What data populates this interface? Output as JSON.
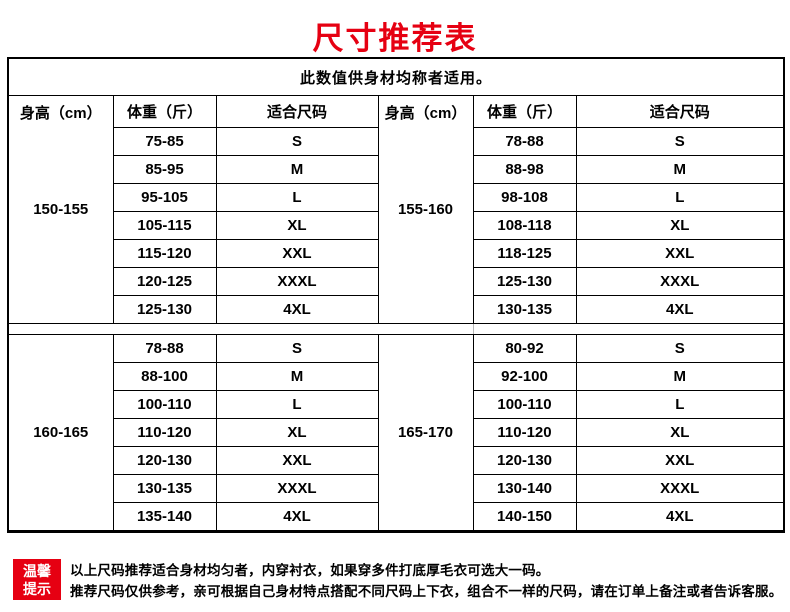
{
  "title": "尺寸推荐表",
  "colors": {
    "accent_red": "#e60012",
    "table_border": "#000000",
    "spacer_divider": "#b5b5b5"
  },
  "table": {
    "note": "此数值供身材均称者适用。",
    "headers": {
      "height": "身高（cm）",
      "weight": "体重（斤）",
      "size": "适合尺码"
    },
    "blocks": [
      {
        "left": {
          "height_range": "150-155",
          "rows": [
            {
              "weight": "75-85",
              "size": "S"
            },
            {
              "weight": "85-95",
              "size": "M"
            },
            {
              "weight": "95-105",
              "size": "L"
            },
            {
              "weight": "105-115",
              "size": "XL"
            },
            {
              "weight": "115-120",
              "size": "XXL"
            },
            {
              "weight": "120-125",
              "size": "XXXL"
            },
            {
              "weight": "125-130",
              "size": "4XL"
            }
          ]
        },
        "right": {
          "height_range": "155-160",
          "rows": [
            {
              "weight": "78-88",
              "size": "S"
            },
            {
              "weight": "88-98",
              "size": "M"
            },
            {
              "weight": "98-108",
              "size": "L"
            },
            {
              "weight": "108-118",
              "size": "XL"
            },
            {
              "weight": "118-125",
              "size": "XXL"
            },
            {
              "weight": "125-130",
              "size": "XXXL"
            },
            {
              "weight": "130-135",
              "size": "4XL"
            }
          ]
        }
      },
      {
        "left": {
          "height_range": "160-165",
          "rows": [
            {
              "weight": "78-88",
              "size": "S"
            },
            {
              "weight": "88-100",
              "size": "M"
            },
            {
              "weight": "100-110",
              "size": "L"
            },
            {
              "weight": "110-120",
              "size": "XL"
            },
            {
              "weight": "120-130",
              "size": "XXL"
            },
            {
              "weight": "130-135",
              "size": "XXXL"
            },
            {
              "weight": "135-140",
              "size": "4XL"
            }
          ]
        },
        "right": {
          "height_range": "165-170",
          "rows": [
            {
              "weight": "80-92",
              "size": "S"
            },
            {
              "weight": "92-100",
              "size": "M"
            },
            {
              "weight": "100-110",
              "size": "L"
            },
            {
              "weight": "110-120",
              "size": "XL"
            },
            {
              "weight": "120-130",
              "size": "XXL"
            },
            {
              "weight": "130-140",
              "size": "XXXL"
            },
            {
              "weight": "140-150",
              "size": "4XL"
            }
          ]
        }
      }
    ]
  },
  "tip": {
    "label_line1": "温馨",
    "label_line2": "提示",
    "lines": [
      "以上尺码推荐适合身材均匀者，内穿衬衣，如果穿多件打底厚毛衣可选大一码。",
      "推荐尺码仅供参考，亲可根据自己身材特点搭配不同尺码上下衣，组合不一样的尺码，请在订单上备注或者告诉客服。"
    ]
  }
}
